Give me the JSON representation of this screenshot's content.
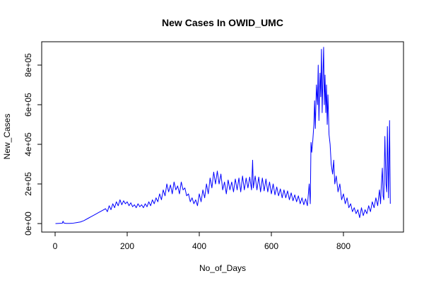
{
  "chart_data": {
    "type": "line",
    "title": "New Cases In OWID_UMC",
    "xlabel": "No_of_Days",
    "ylabel": "New_Cases",
    "xlim": [
      0,
      930
    ],
    "ylim": [
      0,
      900000
    ],
    "x_ticks": [
      0,
      200,
      400,
      600,
      800
    ],
    "x_tick_labels": [
      "0",
      "200",
      "400",
      "600",
      "800"
    ],
    "y_ticks": [
      0,
      200000,
      400000,
      600000,
      800000
    ],
    "y_tick_labels": [
      "0e+00",
      "2e+05",
      "4e+05",
      "6e+05",
      "8e+05"
    ],
    "grid": false,
    "legend": "none",
    "series": [
      {
        "color": "#0000ff",
        "x": [
          1,
          10,
          20,
          22,
          24,
          30,
          40,
          50,
          60,
          70,
          80,
          90,
          100,
          110,
          120,
          130,
          140,
          145,
          150,
          155,
          160,
          165,
          170,
          175,
          180,
          185,
          190,
          195,
          200,
          205,
          210,
          215,
          220,
          225,
          230,
          235,
          240,
          245,
          250,
          255,
          260,
          265,
          270,
          275,
          280,
          285,
          290,
          295,
          300,
          305,
          310,
          315,
          320,
          325,
          330,
          335,
          340,
          345,
          350,
          355,
          360,
          365,
          370,
          375,
          380,
          385,
          390,
          395,
          400,
          405,
          410,
          415,
          420,
          425,
          430,
          435,
          440,
          445,
          450,
          455,
          460,
          465,
          470,
          475,
          480,
          485,
          490,
          495,
          500,
          505,
          510,
          515,
          520,
          525,
          530,
          535,
          540,
          545,
          548,
          550,
          555,
          560,
          565,
          570,
          575,
          580,
          585,
          590,
          595,
          600,
          605,
          610,
          615,
          620,
          625,
          630,
          635,
          640,
          645,
          650,
          655,
          660,
          665,
          670,
          675,
          680,
          685,
          690,
          695,
          700,
          705,
          708,
          710,
          712,
          715,
          718,
          720,
          722,
          725,
          728,
          730,
          732,
          735,
          737,
          739,
          741,
          743,
          745,
          747,
          749,
          751,
          753,
          755,
          757,
          760,
          763,
          766,
          770,
          773,
          776,
          780,
          785,
          790,
          795,
          800,
          805,
          810,
          815,
          820,
          825,
          830,
          835,
          840,
          845,
          850,
          855,
          860,
          865,
          870,
          875,
          880,
          885,
          890,
          895,
          898,
          900,
          903,
          905,
          908,
          910,
          912,
          915,
          918,
          920,
          922,
          925,
          928,
          930
        ],
        "y": [
          0,
          1000,
          2000,
          12000,
          3000,
          1000,
          1000,
          2000,
          5000,
          8000,
          15000,
          25000,
          35000,
          45000,
          55000,
          65000,
          75000,
          60000,
          90000,
          70000,
          100000,
          80000,
          110000,
          90000,
          120000,
          95000,
          115000,
          100000,
          110000,
          90000,
          105000,
          85000,
          95000,
          80000,
          100000,
          85000,
          95000,
          80000,
          100000,
          85000,
          110000,
          90000,
          120000,
          100000,
          130000,
          110000,
          150000,
          120000,
          170000,
          140000,
          200000,
          160000,
          195000,
          150000,
          210000,
          170000,
          190000,
          150000,
          210000,
          170000,
          180000,
          140000,
          150000,
          110000,
          130000,
          100000,
          120000,
          90000,
          150000,
          110000,
          170000,
          130000,
          200000,
          150000,
          230000,
          180000,
          260000,
          200000,
          265000,
          200000,
          250000,
          170000,
          210000,
          150000,
          220000,
          170000,
          210000,
          160000,
          225000,
          170000,
          230000,
          160000,
          240000,
          170000,
          230000,
          180000,
          235000,
          170000,
          320000,
          180000,
          240000,
          170000,
          235000,
          160000,
          230000,
          165000,
          225000,
          160000,
          210000,
          150000,
          200000,
          145000,
          185000,
          140000,
          175000,
          130000,
          170000,
          130000,
          165000,
          120000,
          155000,
          115000,
          145000,
          110000,
          140000,
          100000,
          130000,
          95000,
          125000,
          90000,
          200000,
          100000,
          410000,
          360000,
          420000,
          500000,
          620000,
          480000,
          700000,
          600000,
          800000,
          520000,
          760000,
          640000,
          880000,
          560000,
          740000,
          890000,
          600000,
          750000,
          560000,
          700000,
          500000,
          650000,
          450000,
          400000,
          300000,
          250000,
          320000,
          200000,
          240000,
          160000,
          200000,
          120000,
          150000,
          100000,
          130000,
          80000,
          100000,
          60000,
          80000,
          50000,
          70000,
          30000,
          80000,
          40000,
          70000,
          50000,
          90000,
          60000,
          110000,
          80000,
          130000,
          90000,
          140000,
          170000,
          100000,
          190000,
          280000,
          140000,
          120000,
          440000,
          200000,
          160000,
          490000,
          130000,
          520000,
          100000
        ]
      }
    ]
  }
}
